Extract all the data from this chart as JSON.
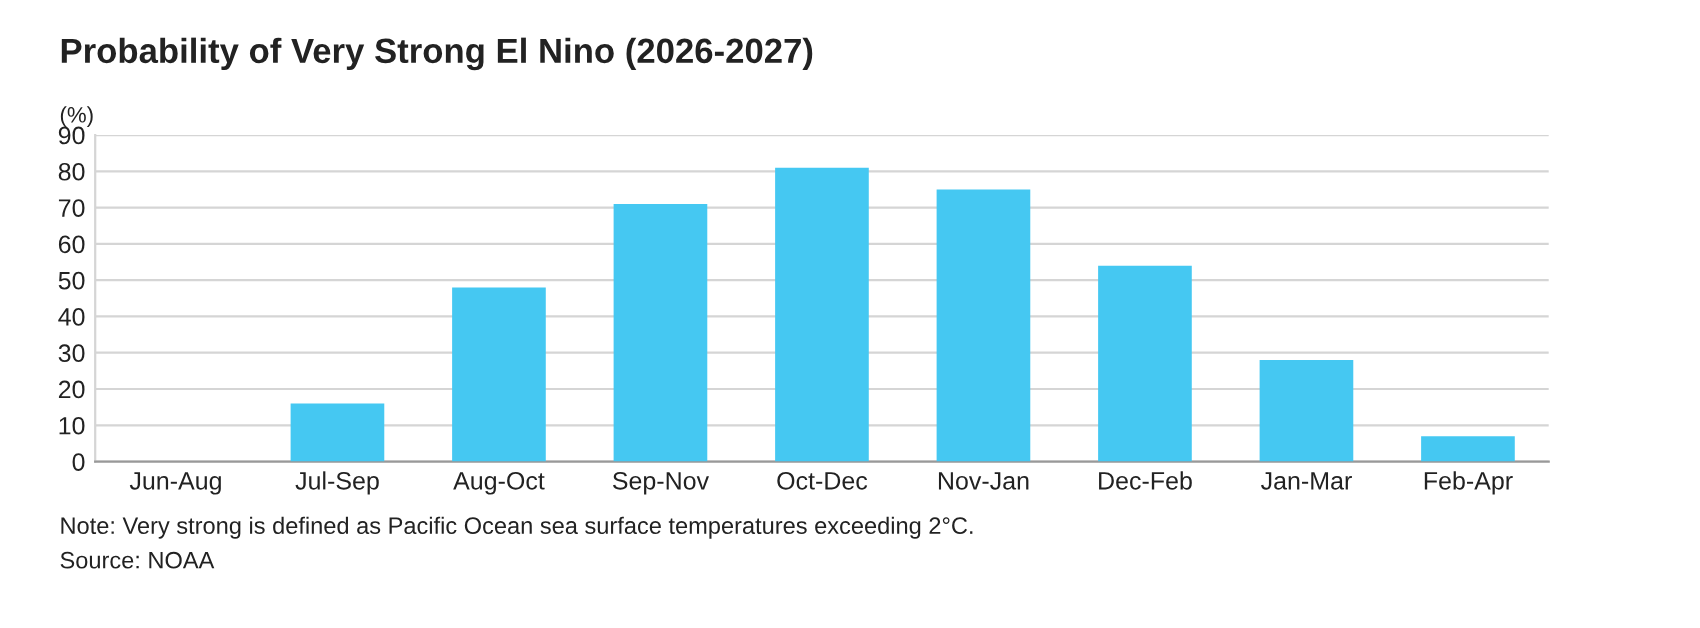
{
  "chart_data": {
    "type": "bar",
    "title": "Probability of Very Strong El Nino (2026-2027)",
    "ylabel": "(%)",
    "categories": [
      "Jun-Aug",
      "Jul-Sep",
      "Aug-Oct",
      "Sep-Nov",
      "Oct-Dec",
      "Nov-Jan",
      "Dec-Feb",
      "Jan-Mar",
      "Feb-Apr"
    ],
    "values": [
      0,
      16,
      48,
      71,
      81,
      75,
      54,
      28,
      7
    ],
    "color": "#45c8f2",
    "ylim": [
      0,
      90
    ],
    "yticks": [
      0,
      10,
      20,
      30,
      40,
      50,
      60,
      70,
      80,
      90
    ],
    "grid": "y",
    "annotations": [
      "Note: Very strong is defined as Pacific Ocean sea surface temperatures exceeding 2°C.",
      "Source: NOAA"
    ]
  }
}
